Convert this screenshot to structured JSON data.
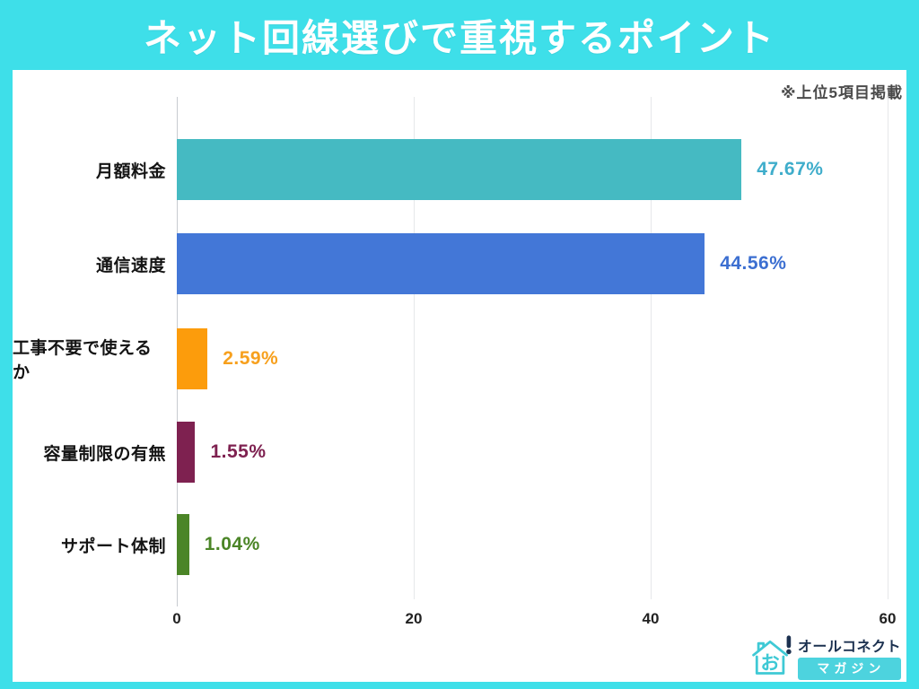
{
  "header": {
    "title": "ネット回線選びで重視するポイント"
  },
  "note": "※上位5項目掲載",
  "chart_data": {
    "type": "bar",
    "orientation": "horizontal",
    "title": "ネット回線選びで重視するポイント",
    "subtitle_note": "※上位5項目掲載",
    "categories": [
      "月額料金",
      "通信速度",
      "工事不要で使えるか",
      "容量制限の有無",
      "サポート体制"
    ],
    "values": [
      47.67,
      44.56,
      2.59,
      1.55,
      1.04
    ],
    "value_labels": [
      "47.67%",
      "44.56%",
      "2.59%",
      "1.55%",
      "1.04%"
    ],
    "bar_colors": [
      "#45BAC2",
      "#4377D7",
      "#FC9C0C",
      "#7E2150",
      "#4B8527"
    ],
    "value_label_colors": [
      "#3FADCB",
      "#3C6FD1",
      "#F7A01D",
      "#7E2150",
      "#4B8527"
    ],
    "x_ticks": [
      0,
      20,
      40,
      60
    ],
    "xlim": [
      0,
      60
    ],
    "xlabel": "",
    "ylabel": "",
    "grid": "vertical-lines",
    "legend": "none"
  },
  "logo": {
    "brand": "オールコネクト",
    "sub": "マガジン",
    "icon_char": "お",
    "icon": "house-logo-icon"
  },
  "colors": {
    "frame": "#3EDFE9",
    "card_bg": "#FFFFFF",
    "title_text": "#FFFFFF",
    "note_text": "#4A4A4A",
    "axis_line": "#C7CBD0",
    "gridline": "#E6E8EA",
    "badge_bg": "#4DD3DE",
    "brand_text": "#1C3150",
    "logo_cyan": "#3FC9D5"
  }
}
